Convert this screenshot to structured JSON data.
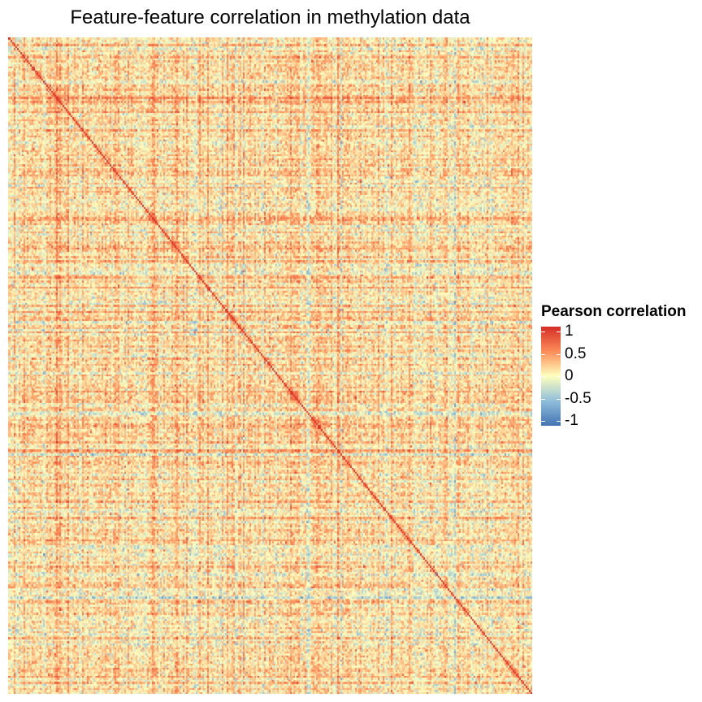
{
  "chart_data": {
    "type": "heatmap",
    "title": "Feature-feature correlation in methylation data",
    "xlabel": "",
    "ylabel": "",
    "matrix_kind": "symmetric feature-by-feature correlation matrix",
    "diagonal_value": 1,
    "value_range": [
      -1,
      1
    ],
    "colorscale": [
      {
        "value": -1,
        "color": "#4575b4"
      },
      {
        "value": -0.5,
        "color": "#91bfdb"
      },
      {
        "value": 0,
        "color": "#ffffbf"
      },
      {
        "value": 0.5,
        "color": "#fc8d59"
      },
      {
        "value": 1,
        "color": "#d73027"
      }
    ],
    "off_diagonal_distribution": "mostly weak positive correlations (about 0 to 0.4) with scattered moderate positive and negative values",
    "axis_tick_labels_shown": false,
    "grid": false,
    "legend": {
      "title": "Pearson correlation",
      "position": "right",
      "ticks": [
        "1",
        "0.5",
        "0",
        "-0.5",
        "-1"
      ],
      "tick_values": [
        1,
        0.5,
        0,
        -0.5,
        -1
      ]
    }
  }
}
